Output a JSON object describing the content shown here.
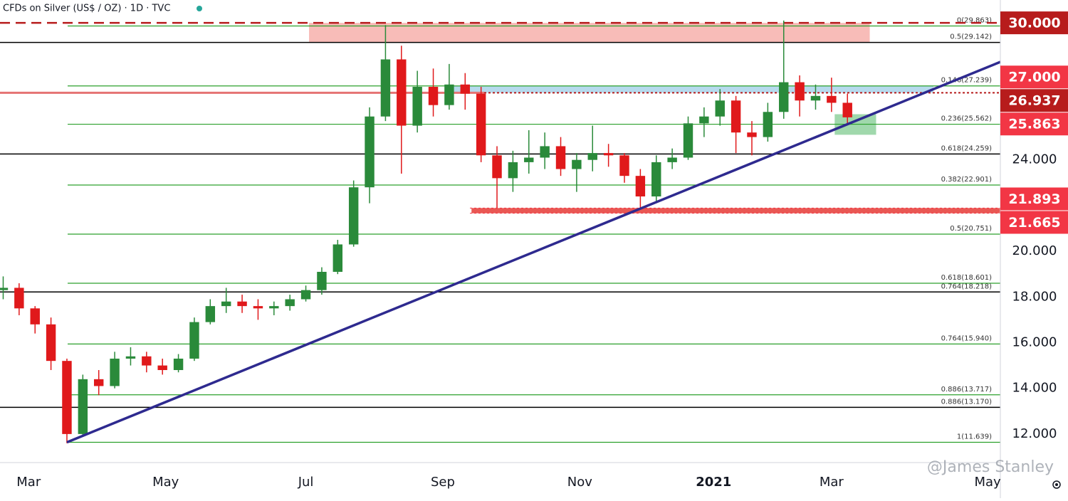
{
  "chart_data": {
    "type": "candlestick",
    "title": "CFDs on Silver (US$ / OZ) · 1D · TVC",
    "watermark": "@James Stanley",
    "up_color": "#2a8a3a",
    "down_color": "#e0191b",
    "xlim": [
      -9,
      305
    ],
    "xticks": [
      {
        "value": 0,
        "label": "Mar"
      },
      {
        "value": 43,
        "label": "May"
      },
      {
        "value": 87,
        "label": "Jul"
      },
      {
        "value": 130,
        "label": "Sep"
      },
      {
        "value": 173,
        "label": "Nov"
      },
      {
        "value": 215,
        "label": "2021"
      },
      {
        "value": 252,
        "label": "Mar"
      },
      {
        "value": 301,
        "label": "May"
      }
    ],
    "ylim": [
      10.75,
      31.0
    ],
    "yticks": [
      {
        "value": 12,
        "label": "12.000"
      },
      {
        "value": 14,
        "label": "14.000"
      },
      {
        "value": 16,
        "label": "16.000"
      },
      {
        "value": 18,
        "label": "18.000"
      },
      {
        "value": 20,
        "label": "20.000"
      },
      {
        "value": 24,
        "label": "24.000"
      }
    ],
    "candles": {
      "x": [
        -8,
        -3,
        2,
        7,
        12,
        17,
        22,
        27,
        32,
        37,
        42,
        47,
        52,
        57,
        62,
        67,
        72,
        77,
        82,
        87,
        92,
        97,
        102,
        107,
        112,
        117,
        122,
        127,
        132,
        137,
        142,
        147,
        152,
        157,
        162,
        167,
        172,
        177,
        182,
        187,
        192,
        197,
        202,
        207,
        212,
        217,
        222,
        227,
        232,
        237,
        242,
        247,
        252,
        257
      ],
      "open": [
        18.3,
        18.4,
        17.5,
        16.8,
        15.2,
        12.0,
        14.4,
        14.1,
        15.3,
        15.4,
        15.0,
        14.8,
        15.3,
        16.9,
        17.6,
        17.8,
        17.6,
        17.5,
        17.6,
        17.9,
        18.3,
        19.1,
        20.3,
        22.8,
        25.9,
        28.4,
        25.5,
        27.2,
        26.4,
        27.3,
        26.9,
        24.2,
        23.2,
        23.9,
        24.1,
        24.6,
        23.6,
        24.0,
        24.3,
        24.2,
        23.3,
        22.4,
        23.9,
        24.1,
        25.6,
        25.9,
        26.6,
        25.2,
        25.0,
        26.1,
        27.4,
        26.6,
        26.8,
        26.5
      ],
      "high": [
        18.9,
        18.6,
        17.6,
        17.1,
        15.3,
        14.6,
        14.8,
        15.6,
        15.8,
        15.6,
        15.3,
        15.5,
        17.1,
        17.9,
        18.4,
        18.1,
        17.9,
        17.8,
        18.1,
        18.5,
        19.3,
        20.5,
        23.1,
        26.3,
        29.9,
        29.0,
        27.9,
        28.0,
        28.2,
        27.8,
        27.2,
        24.6,
        24.4,
        25.3,
        25.2,
        25.0,
        24.3,
        25.5,
        24.7,
        24.3,
        23.6,
        24.2,
        24.5,
        25.9,
        26.3,
        27.1,
        26.8,
        25.7,
        26.5,
        30.1,
        27.7,
        27.3,
        27.6,
        26.9
      ],
      "low": [
        17.9,
        17.2,
        16.4,
        14.8,
        11.6,
        11.9,
        13.7,
        14.0,
        15.0,
        14.7,
        14.6,
        14.7,
        15.2,
        16.8,
        17.3,
        17.3,
        17.0,
        17.2,
        17.4,
        17.8,
        18.1,
        19.0,
        20.2,
        22.1,
        25.7,
        23.4,
        25.2,
        25.9,
        26.2,
        26.2,
        23.9,
        21.9,
        22.6,
        23.4,
        23.6,
        23.3,
        22.6,
        23.5,
        23.7,
        23.0,
        21.9,
        22.2,
        23.6,
        24.0,
        25.0,
        25.5,
        24.3,
        24.2,
        24.8,
        25.8,
        25.9,
        26.2,
        26.1,
        25.6
      ],
      "close": [
        18.4,
        17.5,
        16.8,
        15.2,
        12.0,
        14.4,
        14.1,
        15.3,
        15.4,
        15.0,
        14.8,
        15.3,
        16.9,
        17.6,
        17.8,
        17.6,
        17.5,
        17.6,
        17.9,
        18.3,
        19.1,
        20.3,
        22.8,
        25.9,
        28.4,
        25.5,
        27.2,
        26.4,
        27.3,
        26.9,
        24.2,
        23.2,
        23.9,
        24.1,
        24.6,
        23.6,
        24.0,
        24.3,
        24.2,
        23.3,
        22.4,
        23.9,
        24.1,
        25.6,
        25.9,
        26.6,
        25.2,
        25.0,
        26.1,
        27.4,
        26.6,
        26.8,
        26.5,
        25.863
      ]
    },
    "levels": [
      {
        "label": "0(29.863)",
        "value": 29.863,
        "color": "#2ca02c"
      },
      {
        "label": "0.5(29.142)",
        "value": 29.142,
        "color": "#000000"
      },
      {
        "label": "0.146(27.239)",
        "value": 27.239,
        "color": "#2ca02c"
      },
      {
        "label": "0.236(25.562)",
        "value": 25.562,
        "color": "#2ca02c"
      },
      {
        "label": "0.618(24.259)",
        "value": 24.259,
        "color": "#000000"
      },
      {
        "label": "0.382(22.901)",
        "value": 22.901,
        "color": "#2ca02c"
      },
      {
        "label": "0.5(20.751)",
        "value": 20.751,
        "color": "#2ca02c"
      },
      {
        "label": "0.618(18.601)",
        "value": 18.601,
        "color": "#2ca02c"
      },
      {
        "label": "0.764(18.218)",
        "value": 18.218,
        "color": "#000000"
      },
      {
        "label": "0.764(15.940)",
        "value": 15.94,
        "color": "#2ca02c"
      },
      {
        "label": "0.886(13.717)",
        "value": 13.717,
        "color": "#2ca02c"
      },
      {
        "label": "0.886(13.170)",
        "value": 13.17,
        "color": "#000000"
      },
      {
        "label": "1(11.639)",
        "value": 11.639,
        "color": "#2ca02c"
      }
    ],
    "zones": [
      {
        "x": [
          88,
          264
        ],
        "y": [
          29.142,
          30.0
        ],
        "color": "#f7b0ab"
      },
      {
        "x": [
          132,
          284
        ],
        "y": [
          26.937,
          27.239
        ],
        "color": "#a9d3ea"
      },
      {
        "x": [
          253,
          266
        ],
        "y": [
          25.1,
          26.0
        ],
        "color": "#8fd19e"
      },
      {
        "x": [
          139,
          305
        ],
        "y": [
          21.665,
          21.893
        ],
        "color": "#e53935"
      }
    ],
    "trendline": {
      "x": [
        12,
        305
      ],
      "y": [
        11.639,
        28.29
      ],
      "color": "#2e2a8f"
    },
    "tags": [
      {
        "value": 30.0,
        "label": "30.000",
        "color": "#b71c1c",
        "line": "dashed"
      },
      {
        "value": 27.0,
        "label": "27.000",
        "color": "#f23645"
      },
      {
        "value": 26.937,
        "label": "26.937",
        "color": "#b71c1c",
        "line": "solid"
      },
      {
        "value": 25.863,
        "label": "25.863",
        "color": "#f23645"
      },
      {
        "value": 21.893,
        "label": "21.893",
        "color": "#f23645",
        "line": "dotted"
      },
      {
        "value": 21.665,
        "label": "21.665",
        "color": "#f23645",
        "line": "dotted"
      }
    ]
  }
}
